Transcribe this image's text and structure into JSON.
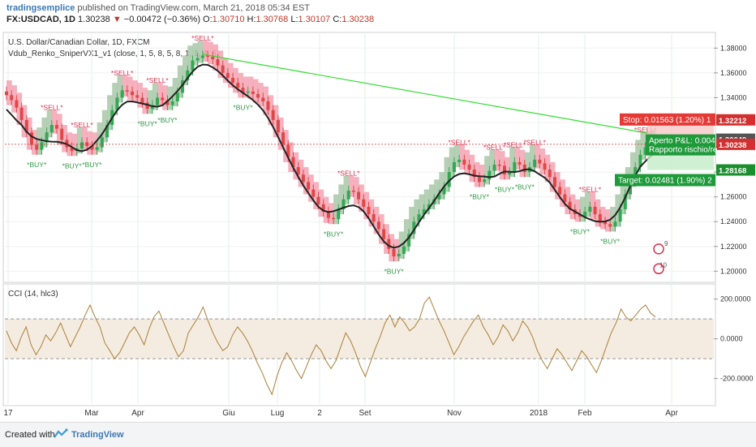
{
  "header": {
    "author": "tradingsemplice",
    "published": "published on TradingView.com, March 21, 2018 05:34 EST",
    "symbol": "FX:USDCAD, 1D",
    "last": "1.30238",
    "change_arrow": "▼",
    "change": "−0.00472 (−0.36%)",
    "open_label": "O:",
    "open": "1.30710",
    "high_label": "H:",
    "high": "1.30768",
    "low_label": "L:",
    "low": "1.30107",
    "close_label": "C:",
    "close": "1.30238"
  },
  "chart_data": [
    {
      "type": "candlestick",
      "title": "U.S. Dollar/Canadian Dollar, 1D, FXCM",
      "indicator": "Vdub_Renko_SniperVX1_v1 (close, 1, 5, 8, 5, 8, 1, 1, 4, 5)",
      "x_ticks": [
        "17",
        "Mar",
        "Apr",
        "Giu",
        "Lug",
        "2",
        "Set",
        "Nov",
        "2018",
        "Feb",
        "Apr"
      ],
      "y_ticks": [
        "1.38000",
        "1.36000",
        "1.34000",
        "1.32000",
        "1.30000",
        "1.28000",
        "1.26000",
        "1.24000",
        "1.22000",
        "1.20000"
      ],
      "ylim": [
        1.195,
        1.39
      ],
      "close_series": [
        1.342,
        1.338,
        1.332,
        1.322,
        1.312,
        1.302,
        1.298,
        1.304,
        1.312,
        1.318,
        1.315,
        1.306,
        1.3,
        1.297,
        1.299,
        1.304,
        1.301,
        1.298,
        1.3,
        1.308,
        1.318,
        1.33,
        1.34,
        1.346,
        1.345,
        1.342,
        1.34,
        1.336,
        1.331,
        1.334,
        1.34,
        1.338,
        1.334,
        1.337,
        1.344,
        1.354,
        1.362,
        1.37,
        1.372,
        1.374,
        1.373,
        1.371,
        1.366,
        1.36,
        1.356,
        1.352,
        1.348,
        1.344,
        1.345,
        1.343,
        1.34,
        1.337,
        1.33,
        1.322,
        1.312,
        1.302,
        1.292,
        1.284,
        1.278,
        1.272,
        1.266,
        1.26,
        1.254,
        1.248,
        1.243,
        1.242,
        1.25,
        1.258,
        1.265,
        1.264,
        1.258,
        1.252,
        1.246,
        1.24,
        1.234,
        1.226,
        1.218,
        1.212,
        1.214,
        1.22,
        1.23,
        1.24,
        1.246,
        1.25,
        1.254,
        1.258,
        1.262,
        1.268,
        1.28,
        1.288,
        1.29,
        1.286,
        1.282,
        1.276,
        1.272,
        1.274,
        1.281,
        1.286,
        1.285,
        1.278,
        1.28,
        1.288,
        1.286,
        1.28,
        1.284,
        1.29,
        1.287,
        1.282,
        1.276,
        1.268,
        1.262,
        1.256,
        1.25,
        1.246,
        1.244,
        1.248,
        1.252,
        1.246,
        1.24,
        1.238,
        1.236,
        1.24,
        1.25,
        1.262,
        1.272,
        1.284,
        1.294,
        1.3,
        1.298,
        1.302
      ],
      "annotations": [
        "*SELL*",
        "*BUY*"
      ],
      "price_labels": [
        {
          "text": "1.32212",
          "color": "#d32f2f"
        },
        {
          "text": "1.30649",
          "color": "#555555"
        },
        {
          "text": "1.30238",
          "color": "#d32f2f"
        },
        {
          "text": "1.28168",
          "color": "#1b8f2e"
        }
      ],
      "position_tool": {
        "stop": "Stop: 0.01563 (1.20%) 1",
        "pnl": "Aperto P&L: 0.004",
        "risk": "Rapporto rischio/re",
        "target": "Target: 0.02481 (1.90%) 2"
      },
      "badge_numbers": [
        "9",
        "10"
      ]
    },
    {
      "type": "line",
      "title": "CCI (14, hlc3)",
      "y_ticks": [
        "200.0000",
        "0.0000",
        "-200.0000"
      ],
      "ylim": [
        -320,
        260
      ],
      "band": [
        -100,
        100
      ],
      "values": [
        40,
        -20,
        -60,
        10,
        60,
        -30,
        -80,
        -40,
        20,
        -10,
        30,
        80,
        20,
        -40,
        10,
        60,
        120,
        170,
        110,
        60,
        -20,
        -60,
        -100,
        -70,
        -20,
        30,
        60,
        20,
        -30,
        50,
        110,
        140,
        80,
        20,
        -40,
        -90,
        -60,
        30,
        70,
        110,
        160,
        90,
        30,
        -20,
        -60,
        -40,
        20,
        60,
        30,
        -10,
        -60,
        -120,
        -170,
        -230,
        -280,
        -190,
        -120,
        -70,
        -110,
        -160,
        -200,
        -140,
        -80,
        -30,
        -60,
        -110,
        -150,
        -110,
        -40,
        30,
        -10,
        -70,
        -140,
        -190,
        -120,
        -50,
        10,
        80,
        120,
        60,
        110,
        80,
        40,
        60,
        100,
        180,
        210,
        150,
        90,
        40,
        -20,
        -80,
        -40,
        10,
        50,
        90,
        120,
        60,
        20,
        -30,
        10,
        70,
        40,
        -10,
        30,
        90,
        60,
        10,
        -60,
        -110,
        -150,
        -100,
        -50,
        -80,
        -120,
        -160,
        -110,
        -60,
        -90,
        -130,
        -170,
        -110,
        -40,
        30,
        80,
        150,
        110,
        90,
        120,
        150,
        170,
        130,
        110
      ],
      "x_ticks": [
        "17",
        "Mar",
        "Apr",
        "Giu",
        "Lug",
        "2",
        "Set",
        "Nov",
        "2018",
        "Feb",
        "Apr"
      ]
    }
  ],
  "footer": {
    "created_with": "Created with",
    "brand": "TradingView"
  },
  "colors": {
    "up": "#33a853",
    "down": "#e04848",
    "red_cloud": "#f5a3b3",
    "green_cloud": "#a8c8a8",
    "trendline": "#33dd33",
    "cci": "#a9803a",
    "band": "#f4ece0"
  }
}
